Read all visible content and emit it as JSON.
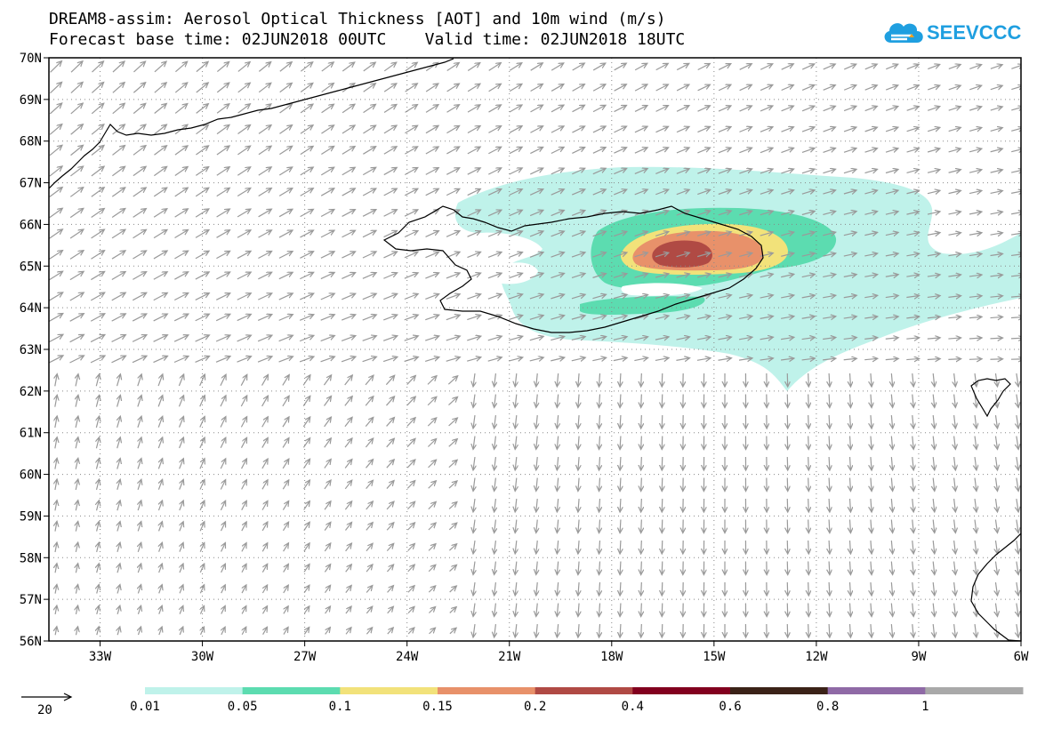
{
  "header": {
    "line1": "DREAM8-assim: Aerosol Optical Thickness [AOT] and 10m wind (m/s)",
    "line2": "Forecast base time: 02JUN2018 00UTC    Valid time: 02JUN2018 18UTC"
  },
  "logo": {
    "text": "SEEVCCC",
    "color": "#1f9fe0"
  },
  "axes": {
    "lat_labels": [
      "70N",
      "69N",
      "68N",
      "67N",
      "66N",
      "65N",
      "64N",
      "63N",
      "62N",
      "61N",
      "60N",
      "59N",
      "58N",
      "57N",
      "56N"
    ],
    "lon_labels": [
      "33W",
      "30W",
      "27W",
      "24W",
      "21W",
      "18W",
      "15W",
      "12W",
      "9W",
      "6W"
    ],
    "lat_range": [
      56,
      70
    ],
    "lon_range": [
      -34.5,
      -6
    ],
    "grid": true
  },
  "wind_legend": {
    "reference_value": "20"
  },
  "colorbar": {
    "labels": [
      "0.01",
      "0.05",
      "0.1",
      "0.15",
      "0.2",
      "0.4",
      "0.6",
      "0.8",
      "1"
    ],
    "colors": [
      "#bff2ea",
      "#5cdcb0",
      "#f2e27a",
      "#e8916a",
      "#b04a44",
      "#82001e",
      "#3b2218",
      "#8f6aa6",
      "#a9a9a9"
    ]
  }
}
